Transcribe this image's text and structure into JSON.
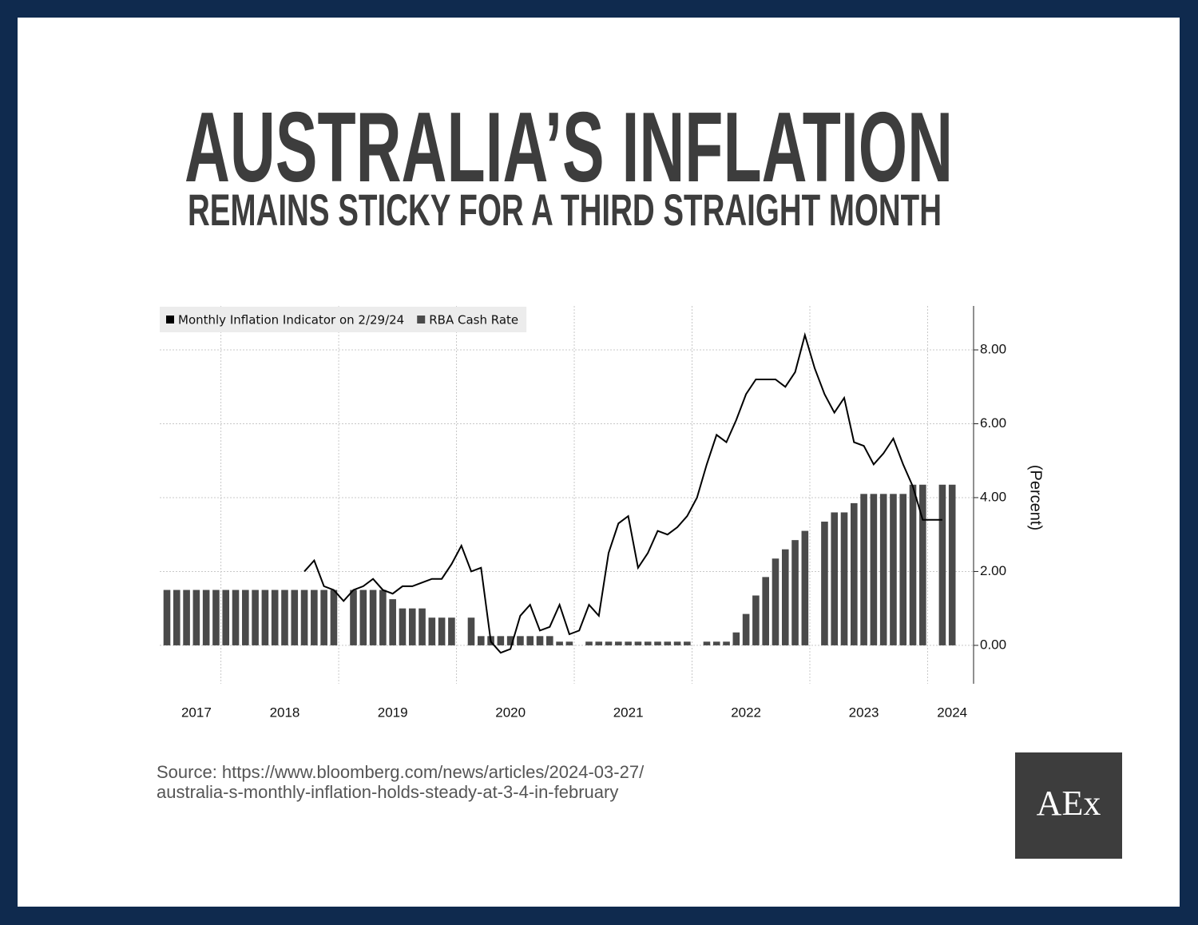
{
  "header": {
    "title": "AUSTRALIA’S INFLATION",
    "subtitle": "REMAINS STICKY FOR A THIRD STRAIGHT MONTH"
  },
  "chart_data": {
    "type": "combo",
    "categories": [
      null,
      null,
      null,
      "2017",
      null,
      null,
      null,
      null,
      null,
      null,
      null,
      null,
      "2018",
      null,
      null,
      null,
      null,
      null,
      null,
      null,
      null,
      null,
      null,
      "2019",
      null,
      null,
      null,
      null,
      null,
      null,
      null,
      null,
      null,
      null,
      null,
      "2020",
      null,
      null,
      null,
      null,
      null,
      null,
      null,
      null,
      null,
      null,
      null,
      "2021",
      null,
      null,
      null,
      null,
      null,
      null,
      null,
      null,
      null,
      null,
      null,
      "2022",
      null,
      null,
      null,
      null,
      null,
      null,
      null,
      null,
      null,
      null,
      null,
      "2023",
      null,
      null,
      null,
      null,
      null,
      null,
      null,
      null,
      "2024"
    ],
    "series": [
      {
        "name": "Monthly Inflation Indicator on 2/29/24",
        "type": "line",
        "color": "#000000",
        "values": [
          null,
          null,
          null,
          null,
          null,
          null,
          null,
          null,
          null,
          null,
          null,
          null,
          null,
          null,
          2.0,
          2.3,
          1.6,
          1.5,
          1.2,
          1.5,
          1.6,
          1.8,
          1.5,
          1.4,
          1.6,
          1.6,
          1.7,
          1.8,
          1.8,
          2.2,
          2.7,
          2.0,
          2.1,
          0.1,
          -0.2,
          -0.1,
          0.8,
          1.1,
          0.4,
          0.5,
          1.1,
          0.3,
          0.4,
          1.1,
          0.8,
          2.5,
          3.3,
          3.5,
          2.1,
          2.5,
          3.1,
          3.0,
          3.2,
          3.5,
          4.0,
          4.9,
          5.7,
          5.5,
          6.1,
          6.8,
          7.2,
          7.2,
          7.2,
          7.0,
          7.4,
          8.4,
          7.5,
          6.8,
          6.3,
          6.7,
          5.5,
          5.4,
          4.9,
          5.2,
          5.6,
          4.9,
          4.3,
          3.4,
          3.4,
          3.4,
          null
        ]
      },
      {
        "name": "RBA Cash Rate",
        "type": "bar",
        "color": "#4a4a4a",
        "values": [
          1.5,
          1.5,
          1.5,
          1.5,
          1.5,
          1.5,
          1.5,
          1.5,
          1.5,
          1.5,
          1.5,
          1.5,
          1.5,
          1.5,
          1.5,
          1.5,
          1.5,
          1.5,
          null,
          1.5,
          1.5,
          1.5,
          1.5,
          1.25,
          1.0,
          1.0,
          1.0,
          0.75,
          0.75,
          0.75,
          null,
          0.75,
          0.25,
          0.25,
          0.25,
          0.25,
          0.25,
          0.25,
          0.25,
          0.25,
          0.1,
          0.1,
          null,
          0.1,
          0.1,
          0.1,
          0.1,
          0.1,
          0.1,
          0.1,
          0.1,
          0.1,
          0.1,
          0.1,
          null,
          0.1,
          0.1,
          0.1,
          0.35,
          0.85,
          1.35,
          1.85,
          2.35,
          2.6,
          2.85,
          3.1,
          null,
          3.35,
          3.6,
          3.6,
          3.85,
          4.1,
          4.1,
          4.1,
          4.1,
          4.1,
          4.35,
          4.35,
          null,
          4.35,
          4.35
        ]
      }
    ],
    "y_label": "(Percent)",
    "ylim": [
      -1.04,
      9.19
    ],
    "yticks": [
      {
        "value": 0,
        "label": "0.00"
      },
      {
        "value": 2,
        "label": "2.00"
      },
      {
        "value": 4,
        "label": "4.00"
      },
      {
        "value": 6,
        "label": "6.00"
      },
      {
        "value": 8,
        "label": "8.00"
      }
    ],
    "grid": true,
    "legend": "upper left"
  },
  "source": [
    "Source: https://www.bloomberg.com/news/articles/2024-03-27/",
    "australia-s-monthly-inflation-holds-steady-at-3-4-in-february"
  ],
  "logo": "AEx"
}
